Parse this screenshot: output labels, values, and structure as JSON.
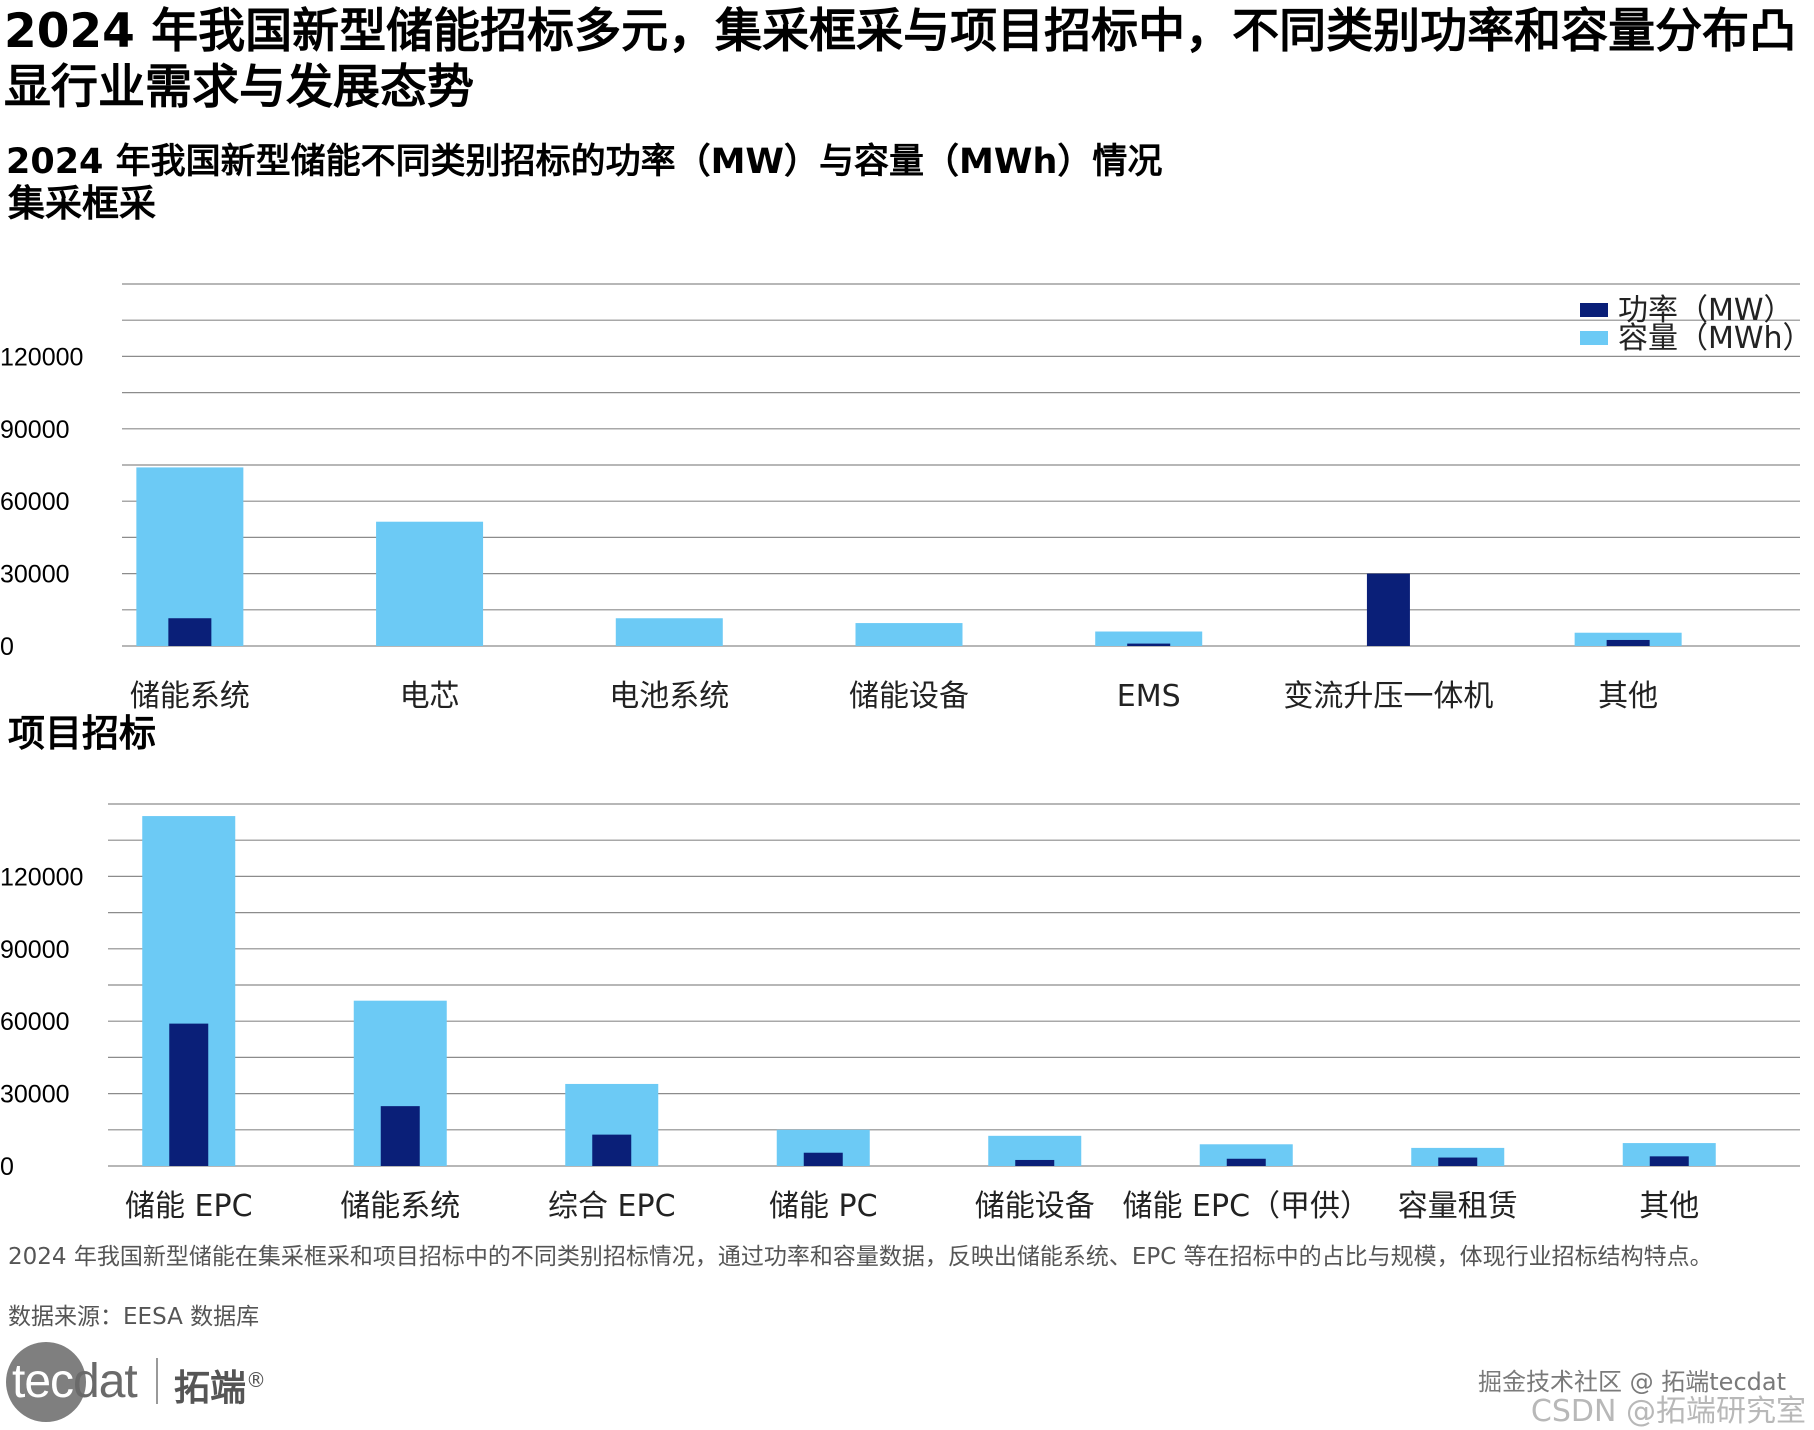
{
  "page_title": "2024 年我国新型储能招标多元，集采框采与项目招标中，不同类别功率和容量分布凸显行业需求与发展态势",
  "chart_heading": "2024 年我国新型储能不同类别招标的功率（MW）与容量（MWh）情况",
  "legend": {
    "power": "功率（MW）",
    "capacity": "容量（MWh）"
  },
  "colors": {
    "power": "#0a1f78",
    "capacity": "#6ccaf5",
    "grid": "#8c8c8c"
  },
  "chart_data": [
    {
      "type": "bar",
      "title": "集采框采",
      "categories": [
        "储能系统",
        "电芯",
        "电池系统",
        "储能设备",
        "EMS",
        "变流升压一体机",
        "其他"
      ],
      "series": [
        {
          "name": "功率（MW）",
          "values": [
            11500,
            0,
            0,
            0,
            1000,
            30000,
            2500
          ]
        },
        {
          "name": "容量（MWh）",
          "values": [
            74000,
            51500,
            11500,
            9500,
            6000,
            0,
            5500
          ]
        }
      ],
      "yticks": [
        0,
        30000,
        60000,
        90000,
        120000
      ],
      "ylim": [
        0,
        150000
      ],
      "grid": true,
      "legend_position": "top-right"
    },
    {
      "type": "bar",
      "title": "项目招标",
      "categories": [
        "储能 EPC",
        "储能系统",
        "综合 EPC",
        "储能 PC",
        "储能设备",
        "储能 EPC（甲供）",
        "容量租赁",
        "其他"
      ],
      "series": [
        {
          "name": "功率（MW）",
          "values": [
            59000,
            24800,
            13000,
            5500,
            2500,
            3000,
            3500,
            4000
          ]
        },
        {
          "name": "容量（MWh）",
          "values": [
            145000,
            68500,
            34000,
            15000,
            12500,
            9000,
            7500,
            9500
          ]
        }
      ],
      "yticks": [
        0,
        30000,
        60000,
        90000,
        120000
      ],
      "ylim": [
        0,
        150000
      ],
      "grid": true
    }
  ],
  "note": "2024 年我国新型储能在集采框采和项目招标中的不同类别招标情况，通过功率和容量数据，反映出储能系统、EPC 等在招标中的占比与规模，体现行业招标结构特点。",
  "source": "数据来源：EESA 数据库",
  "logo": {
    "word_head": "tec",
    "word_tail": "dat",
    "cn": "拓端",
    "mark": "®"
  },
  "watermarks": [
    "掘金技术社区 @ 拓端tecdat",
    "CSDN @拓端研究室"
  ]
}
